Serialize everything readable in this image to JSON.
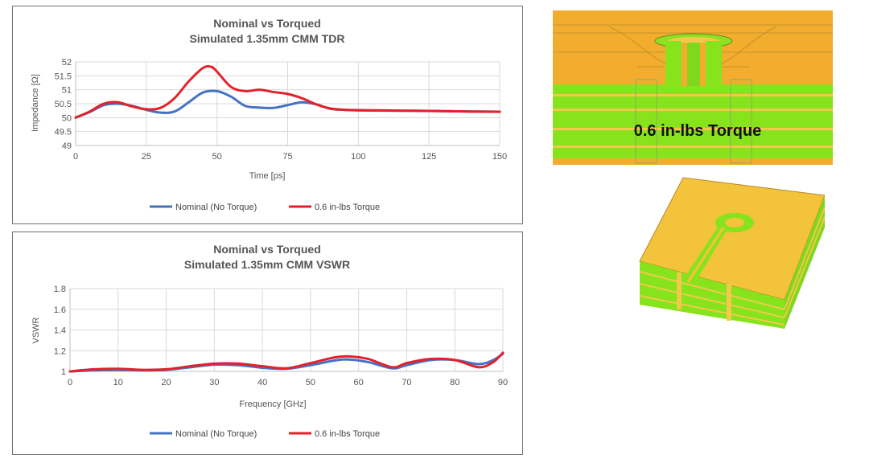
{
  "colors": {
    "nominal": "#4472c4",
    "torque": "#e3212b",
    "yellow": "#f2c33b",
    "green": "#88e51d"
  },
  "render": {
    "label": "0.6 in-lbs Torque"
  },
  "chart_data": [
    {
      "type": "line",
      "title": "Nominal vs Torqued",
      "subtitle": "Simulated 1.35mm CMM TDR",
      "xlabel": "Time [ps]",
      "ylabel": "Impedance [Ω]",
      "xlim": [
        0,
        150
      ],
      "ylim": [
        49,
        52
      ],
      "xticks": [
        0,
        25,
        50,
        75,
        100,
        125,
        150
      ],
      "yticks": [
        49,
        49.5,
        50,
        50.5,
        51,
        51.5,
        52
      ],
      "x_tick_labels": [
        "0",
        "25",
        "50",
        "75",
        "100",
        "125",
        "150"
      ],
      "y_tick_labels": [
        "49",
        "49.5",
        "50",
        "50.5",
        "51",
        "51.5",
        "52"
      ],
      "series": [
        {
          "name": "Nominal (No Torque)",
          "x": [
            0,
            5,
            10,
            15,
            20,
            25,
            30,
            35,
            40,
            45,
            50,
            55,
            60,
            65,
            70,
            75,
            80,
            85,
            90,
            95,
            100,
            110,
            125,
            140,
            150
          ],
          "y": [
            50.0,
            50.2,
            50.45,
            50.5,
            50.42,
            50.28,
            50.18,
            50.22,
            50.55,
            50.9,
            50.95,
            50.75,
            50.42,
            50.36,
            50.35,
            50.45,
            50.55,
            50.48,
            50.32,
            50.28,
            50.26,
            50.25,
            50.24,
            50.22,
            50.21
          ]
        },
        {
          "name": "0.6 in-lbs Torque",
          "x": [
            0,
            5,
            10,
            15,
            20,
            25,
            30,
            35,
            40,
            45,
            48,
            50,
            55,
            60,
            65,
            70,
            75,
            80,
            85,
            90,
            95,
            100,
            110,
            125,
            140,
            150
          ],
          "y": [
            50.0,
            50.22,
            50.5,
            50.55,
            50.4,
            50.3,
            50.35,
            50.7,
            51.3,
            51.78,
            51.82,
            51.65,
            51.1,
            50.95,
            51.0,
            50.92,
            50.85,
            50.7,
            50.48,
            50.33,
            50.28,
            50.27,
            50.26,
            50.24,
            50.22,
            50.21
          ]
        }
      ]
    },
    {
      "type": "line",
      "title": "Nominal vs Torqued",
      "subtitle": "Simulated 1.35mm CMM VSWR",
      "xlabel": "Frequency [GHz]",
      "ylabel": "VSWR",
      "xlim": [
        0,
        90
      ],
      "ylim": [
        1,
        1.8
      ],
      "xticks": [
        0,
        10,
        20,
        30,
        40,
        50,
        60,
        70,
        80,
        90
      ],
      "yticks": [
        1,
        1.2,
        1.4,
        1.6,
        1.8
      ],
      "x_tick_labels": [
        "0",
        "10",
        "20",
        "30",
        "40",
        "50",
        "60",
        "70",
        "80",
        "90"
      ],
      "y_tick_labels": [
        "1",
        "1.2",
        "1.4",
        "1.6",
        "1.8"
      ],
      "series": [
        {
          "name": "Nominal (No Torque)",
          "x": [
            0,
            5,
            10,
            15,
            20,
            25,
            30,
            35,
            40,
            45,
            50,
            55,
            58,
            62,
            67,
            70,
            75,
            80,
            85,
            88,
            90
          ],
          "y": [
            1.0,
            1.01,
            1.015,
            1.01,
            1.015,
            1.04,
            1.065,
            1.06,
            1.035,
            1.025,
            1.06,
            1.105,
            1.115,
            1.09,
            1.03,
            1.06,
            1.11,
            1.11,
            1.07,
            1.11,
            1.17
          ]
        },
        {
          "name": "0.6 in-lbs Torque",
          "x": [
            0,
            5,
            10,
            15,
            20,
            25,
            30,
            35,
            40,
            45,
            50,
            55,
            58,
            62,
            67,
            70,
            75,
            80,
            85,
            88,
            90
          ],
          "y": [
            1.0,
            1.02,
            1.025,
            1.015,
            1.02,
            1.05,
            1.075,
            1.075,
            1.05,
            1.03,
            1.08,
            1.135,
            1.145,
            1.12,
            1.04,
            1.08,
            1.12,
            1.11,
            1.04,
            1.09,
            1.18
          ]
        }
      ]
    }
  ]
}
